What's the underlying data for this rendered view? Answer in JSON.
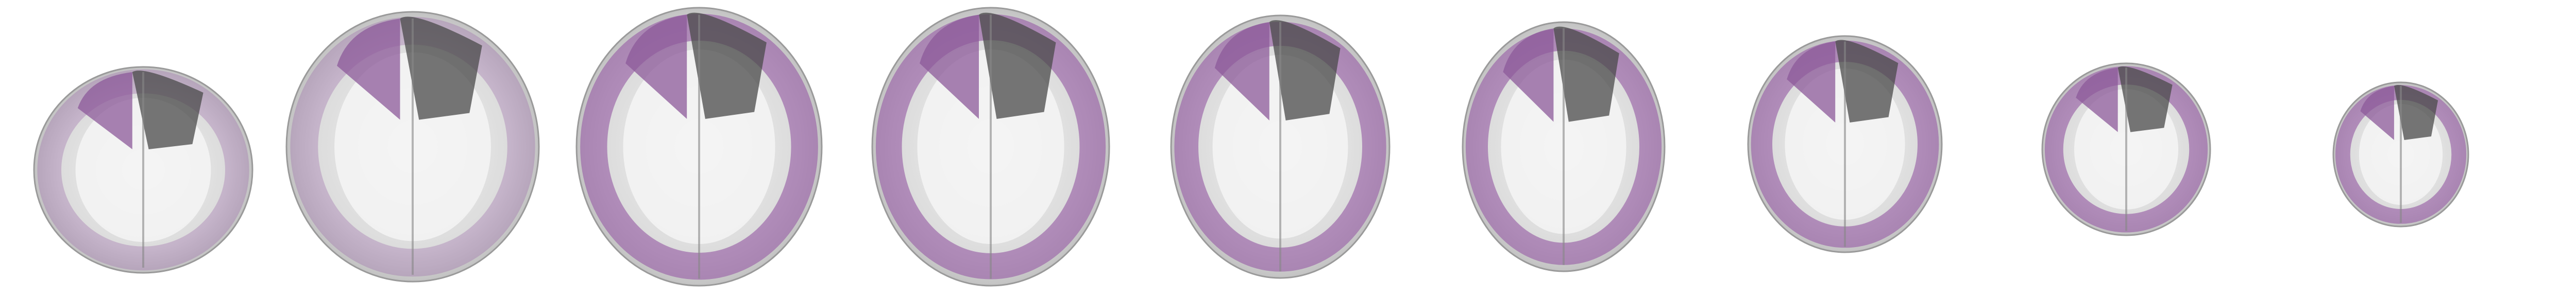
{
  "colorbar": {
    "lim": [
      0,
      0.12
    ],
    "ticks": [
      0,
      0.03,
      0.06,
      0.09,
      0.12
    ],
    "colormap": [
      "#c99bd4",
      "#9a62a8",
      "#6a3a78",
      "#34183d",
      "#000000"
    ]
  }
}
